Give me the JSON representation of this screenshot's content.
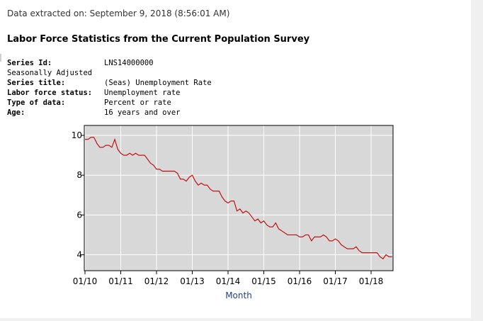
{
  "header": {
    "extracted_label": "Data extracted on: September 9, 2018 (8:56:01 AM)",
    "title": "Labor Force Statistics from the Current Population Survey"
  },
  "series_info": [
    {
      "key": "Series Id:",
      "value": "LNS14000000",
      "bold": true
    },
    {
      "key": "Seasonally Adjusted",
      "value": "",
      "bold": false
    },
    {
      "key": "Series title:",
      "value": "(Seas) Unemployment Rate",
      "bold": true
    },
    {
      "key": "Labor force status:",
      "value": "Unemployment rate",
      "bold": true
    },
    {
      "key": "Type of data:",
      "value": "Percent or rate",
      "bold": true
    },
    {
      "key": "Age:",
      "value": "16 years and over",
      "bold": true
    }
  ],
  "colors": {
    "line": "#c00000",
    "plot_bg": "#d8d8d8",
    "grid": "#ffffff",
    "xlabel": "#1f3f8f"
  },
  "chart_data": {
    "type": "line",
    "title": "",
    "xlabel": "Month",
    "ylabel": "",
    "x_ticks": [
      "01/10",
      "01/11",
      "01/12",
      "01/13",
      "01/14",
      "01/15",
      "01/16",
      "01/17",
      "01/18"
    ],
    "y_ticks": [
      4,
      6,
      8,
      10
    ],
    "ylim": [
      3.2,
      10.5
    ],
    "grid": true,
    "series": [
      {
        "name": "Unemployment Rate",
        "start": "2010-01",
        "values": [
          9.8,
          9.8,
          9.9,
          9.9,
          9.6,
          9.4,
          9.4,
          9.5,
          9.5,
          9.4,
          9.8,
          9.3,
          9.1,
          9.0,
          9.0,
          9.1,
          9.0,
          9.1,
          9.0,
          9.0,
          9.0,
          8.8,
          8.6,
          8.5,
          8.3,
          8.3,
          8.2,
          8.2,
          8.2,
          8.2,
          8.2,
          8.1,
          7.8,
          7.8,
          7.7,
          7.9,
          8.0,
          7.7,
          7.5,
          7.6,
          7.5,
          7.5,
          7.3,
          7.2,
          7.2,
          7.2,
          6.9,
          6.7,
          6.6,
          6.7,
          6.7,
          6.2,
          6.3,
          6.1,
          6.2,
          6.1,
          5.9,
          5.7,
          5.8,
          5.6,
          5.7,
          5.5,
          5.4,
          5.4,
          5.6,
          5.3,
          5.2,
          5.1,
          5.0,
          5.0,
          5.0,
          5.0,
          4.9,
          4.9,
          5.0,
          5.0,
          4.7,
          4.9,
          4.9,
          4.9,
          5.0,
          4.9,
          4.7,
          4.7,
          4.8,
          4.7,
          4.5,
          4.4,
          4.3,
          4.3,
          4.3,
          4.4,
          4.2,
          4.1,
          4.1,
          4.1,
          4.1,
          4.1,
          4.1,
          3.9,
          3.8,
          4.0,
          3.9,
          3.9
        ]
      }
    ]
  }
}
